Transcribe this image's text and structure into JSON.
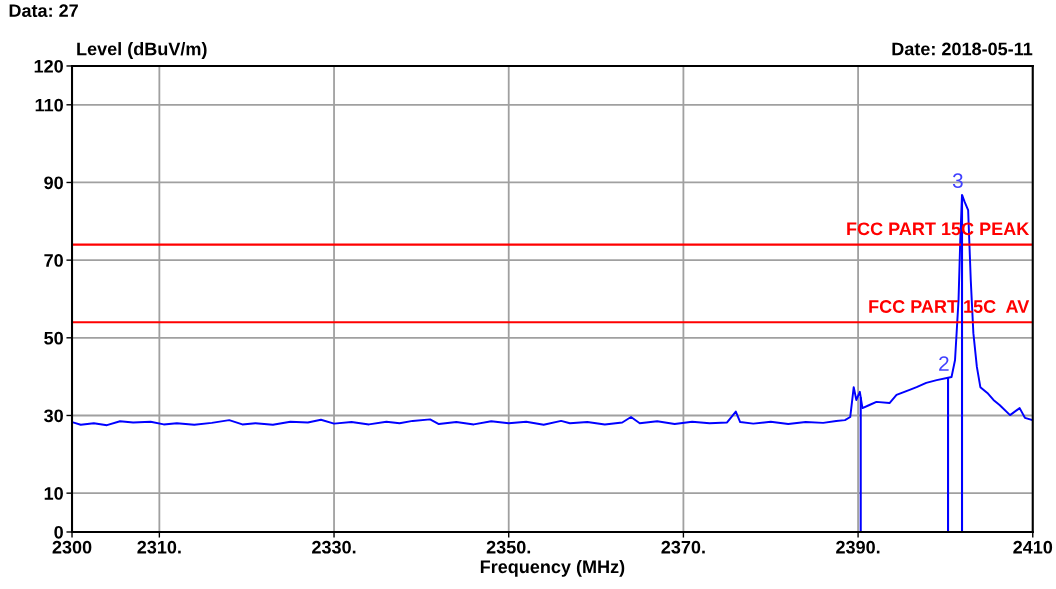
{
  "chart_data": {
    "type": "line",
    "xlabel": "Frequency (MHz)",
    "ylabel": "Level (dBuV/m)",
    "annotations": [
      "Data: 27",
      "Date: 2018-05-11",
      {
        "text": "2",
        "x": 2400.3,
        "y": 39.7
      },
      {
        "text": "3",
        "x": 2401.9,
        "y": 86.8
      }
    ],
    "series": [
      {
        "color": "#0000ff",
        "x": [
          2300,
          2301,
          2302.5,
          2304,
          2305.5,
          2307,
          2309,
          2310.5,
          2312,
          2314,
          2316,
          2318,
          2319.5,
          2321,
          2323,
          2325,
          2327,
          2328.5,
          2330,
          2332,
          2334,
          2336,
          2337.5,
          2339,
          2341,
          2342,
          2344,
          2346,
          2348,
          2350,
          2352,
          2354,
          2356,
          2357,
          2359,
          2361,
          2363,
          2364,
          2365,
          2367,
          2369,
          2371,
          2373,
          2375,
          2376,
          2376.5,
          2378,
          2380,
          2382,
          2384,
          2386,
          2387.5,
          2388.5,
          2389.1,
          2389.5,
          2389.8,
          2390.2,
          2390.5,
          2391.3,
          2392.1,
          2393.6,
          2394.4,
          2395.9,
          2396.7,
          2397.8,
          2399.0,
          2400.3,
          2400.7,
          2401.1,
          2401.5,
          2401.7,
          2401.9,
          2402.2,
          2402.6,
          2402.9,
          2403.2,
          2403.6,
          2404.0,
          2404.8,
          2405.5,
          2406.2,
          2407.4,
          2408.5,
          2409.1,
          2410
        ],
        "values": [
          28.3,
          27.6,
          28.0,
          27.5,
          28.5,
          28.2,
          28.4,
          27.7,
          28.0,
          27.6,
          28.1,
          28.8,
          27.7,
          28.0,
          27.6,
          28.4,
          28.2,
          28.9,
          27.9,
          28.3,
          27.7,
          28.4,
          28.0,
          28.6,
          29.0,
          27.8,
          28.3,
          27.7,
          28.5,
          28.0,
          28.4,
          27.6,
          28.6,
          28.0,
          28.3,
          27.7,
          28.2,
          29.6,
          28.0,
          28.5,
          27.8,
          28.4,
          28.0,
          28.2,
          31.0,
          28.3,
          27.9,
          28.4,
          27.8,
          28.3,
          28.1,
          28.6,
          28.8,
          29.6,
          37.3,
          34.0,
          36.1,
          31.9,
          32.7,
          33.5,
          33.2,
          35.3,
          36.6,
          37.3,
          38.4,
          39.1,
          39.7,
          39.9,
          44.3,
          59.7,
          75.2,
          86.8,
          85.0,
          82.9,
          64.9,
          51.2,
          42.5,
          37.3,
          35.8,
          34.0,
          32.7,
          30.1,
          31.9,
          29.4,
          28.8
        ]
      }
    ],
    "ref_lines": [
      {
        "axis": "y",
        "value": 74,
        "label": "FCC PART 15C PEAK",
        "color": "#ff0000"
      },
      {
        "axis": "y",
        "value": 54,
        "label": "FCC PART 15C  AV",
        "color": "#ff0000"
      },
      {
        "axis": "x",
        "value": 2390.3,
        "color": "#0000ff"
      },
      {
        "axis": "x",
        "value": 2400.3,
        "color": "#0000ff"
      },
      {
        "axis": "x",
        "value": 2401.9,
        "color": "#0000ff"
      }
    ],
    "xlim": [
      2300,
      2410
    ],
    "xticks": [
      2300,
      {
        "value": 2310,
        "label": "2310."
      },
      {
        "value": 2330,
        "label": "2330."
      },
      {
        "value": 2350,
        "label": "2350."
      },
      {
        "value": 2370,
        "label": "2370."
      },
      {
        "value": 2390,
        "label": "2390."
      },
      2410
    ],
    "ylim": [
      0,
      120
    ],
    "yticks": [
      0,
      10,
      30,
      50,
      70,
      90,
      110,
      120
    ],
    "grid": true,
    "marker": "none",
    "line_style": "solid"
  }
}
